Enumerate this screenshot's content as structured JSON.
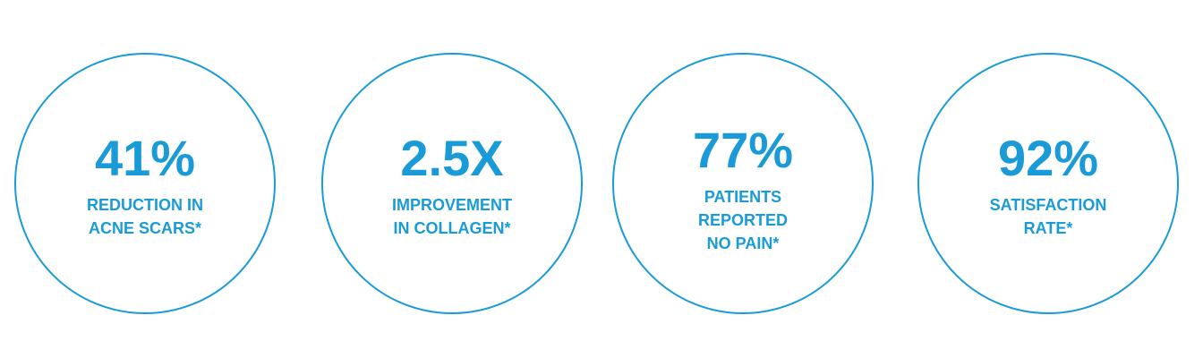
{
  "stats": [
    {
      "value": "41%",
      "label_lines": [
        "REDUCTION IN",
        "ACNE SCARS*"
      ]
    },
    {
      "value": "2.5X",
      "label_lines": [
        "IMPROVEMENT",
        "IN COLLAGEN*"
      ]
    },
    {
      "value": "77%",
      "label_lines": [
        "PATIENTS",
        "REPORTED",
        "NO PAIN*"
      ]
    },
    {
      "value": "92%",
      "label_lines": [
        "SATISFACTION",
        "RATE*"
      ]
    }
  ]
}
